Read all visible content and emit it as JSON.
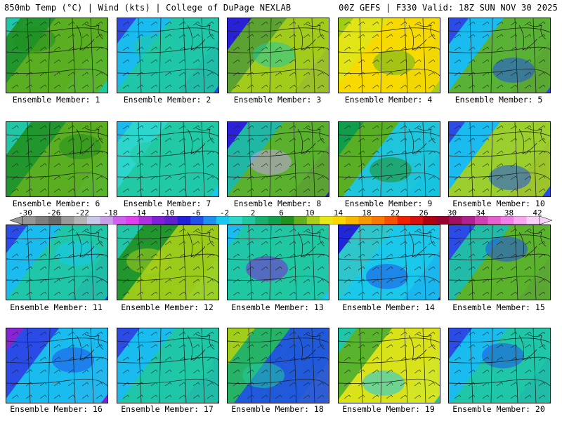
{
  "header": {
    "left": "850mb Temp (°C) | Wind (kts) | College of DuPage NEXLAB",
    "right": "00Z GEFS | F330 Valid: 18Z SUN NOV 30 2025"
  },
  "colorbar": {
    "ticks": [
      "-30",
      "-26",
      "-22",
      "-18",
      "-14",
      "-10",
      "-6",
      "-2",
      "2",
      "6",
      "10",
      "14",
      "18",
      "22",
      "26",
      "30",
      "34",
      "38",
      "42"
    ],
    "colors": [
      "#969696",
      "#7e7e7e",
      "#6a6a6a",
      "#9a9a9a",
      "#b4b4b4",
      "#c8c8e8",
      "#c8a0e8",
      "#d060f0",
      "#e040f0",
      "#b030e0",
      "#8020d8",
      "#6020d0",
      "#2020d8",
      "#2050e8",
      "#1e90f0",
      "#18c8f0",
      "#30d8c8",
      "#20c8a0",
      "#18b070",
      "#10a050",
      "#209020",
      "#60b020",
      "#a8d018",
      "#e8e818",
      "#f8d800",
      "#f8b800",
      "#f89800",
      "#f87800",
      "#f85000",
      "#f02000",
      "#d81010",
      "#b00010",
      "#980030",
      "#a01060",
      "#b02090",
      "#d040b0",
      "#e860d0",
      "#f080e8",
      "#f8a8f0",
      "#f8d0f8"
    ]
  },
  "panels": [
    {
      "label": "Ensemble Member: 1",
      "colors": [
        "#1e90f0",
        "#18c8f0",
        "#20c8a0",
        "#209020",
        "#60b020"
      ]
    },
    {
      "label": "Ensemble Member: 2",
      "colors": [
        "#d040b0",
        "#8020d8",
        "#2050e8",
        "#18c8f0",
        "#20c8a0"
      ]
    },
    {
      "label": "Ensemble Member: 3",
      "colors": [
        "#20c8a0",
        "#8020d8",
        "#2020d8",
        "#60b020",
        "#a8d018"
      ]
    },
    {
      "label": "Ensemble Member: 4",
      "colors": [
        "#209020",
        "#60b020",
        "#a8d018",
        "#e8e818",
        "#f8d800"
      ]
    },
    {
      "label": "Ensemble Member: 5",
      "colors": [
        "#b02090",
        "#8020d8",
        "#2050e8",
        "#18c8f0",
        "#60b020"
      ]
    },
    {
      "label": "Ensemble Member: 6",
      "colors": [
        "#d040b0",
        "#18c8f0",
        "#20c8a0",
        "#209020",
        "#60b020"
      ]
    },
    {
      "label": "Ensemble Member: 7",
      "colors": [
        "#6020d0",
        "#2050e8",
        "#18c8f0",
        "#30d8c8",
        "#20c8a0"
      ]
    },
    {
      "label": "Ensemble Member: 8",
      "colors": [
        "#c8a0e8",
        "#8020d8",
        "#2020d8",
        "#20c8a0",
        "#60b020"
      ]
    },
    {
      "label": "Ensemble Member: 9",
      "colors": [
        "#18b070",
        "#209020",
        "#10a050",
        "#60b020",
        "#18c8f0"
      ]
    },
    {
      "label": "Ensemble Member: 10",
      "colors": [
        "#d040b0",
        "#8020d8",
        "#2050e8",
        "#18c8f0",
        "#a8d018"
      ]
    },
    {
      "label": "Ensemble Member: 11",
      "colors": [
        "#d040b0",
        "#8020d8",
        "#2050e8",
        "#18c8f0",
        "#20c8a0"
      ]
    },
    {
      "label": "Ensemble Member: 12",
      "colors": [
        "#2050e8",
        "#18c8f0",
        "#20c8a0",
        "#209020",
        "#a8d018"
      ]
    },
    {
      "label": "Ensemble Member: 13",
      "colors": [
        "#8020d8",
        "#2050e8",
        "#18c8f0",
        "#20c8a0",
        "#20c8a0"
      ]
    },
    {
      "label": "Ensemble Member: 14",
      "colors": [
        "#18c8f0",
        "#2050e8",
        "#2020d8",
        "#30d8c8",
        "#18c8f0"
      ]
    },
    {
      "label": "Ensemble Member: 15",
      "colors": [
        "#d040b0",
        "#8020d8",
        "#2050e8",
        "#20c8a0",
        "#60b020"
      ]
    },
    {
      "label": "Ensemble Member: 16",
      "colors": [
        "#9a9a9a",
        "#d040b0",
        "#8020d8",
        "#2050e8",
        "#18c8f0"
      ]
    },
    {
      "label": "Ensemble Member: 17",
      "colors": [
        "#d040b0",
        "#8020d8",
        "#2050e8",
        "#18c8f0",
        "#20c8a0"
      ]
    },
    {
      "label": "Ensemble Member: 18",
      "colors": [
        "#20c8a0",
        "#60b020",
        "#a8d018",
        "#18b070",
        "#2050e8"
      ]
    },
    {
      "label": "Ensemble Member: 19",
      "colors": [
        "#2050e8",
        "#18c8f0",
        "#20c8a0",
        "#60b020",
        "#e8e818"
      ]
    },
    {
      "label": "Ensemble Member: 20",
      "colors": [
        "#d040b0",
        "#8020d8",
        "#2050e8",
        "#18c8f0",
        "#20c8a0"
      ]
    }
  ]
}
